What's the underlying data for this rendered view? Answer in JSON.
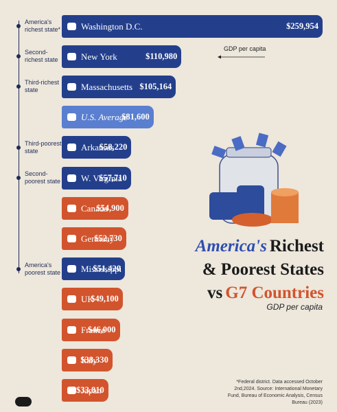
{
  "chart_data": {
    "type": "bar",
    "orientation": "horizontal",
    "title_parts": [
      "America's",
      "Richest",
      "& Poorest States",
      "vs",
      "G7 Countries"
    ],
    "subtitle": "GDP per capita",
    "annotation": "GDP per capita",
    "footnote": "*Federal district. Data accessed October 2nd,2024. Source: International Monetary Fund, Bureau of Economic Analysis, Census Bureau (2023)",
    "categories": [
      "Washington D.C.",
      "New York",
      "Massachusetts",
      "U.S. Average",
      "Arkansas",
      "W. Virginia",
      "Canada",
      "Germany",
      "Mississippi",
      "UK",
      "France",
      "Italy",
      "Japan"
    ],
    "values": [
      259954,
      110980,
      105164,
      81600,
      58220,
      57710,
      54900,
      52730,
      51420,
      49100,
      46000,
      38330,
      33810
    ],
    "value_labels": [
      "$259,954",
      "$110,980",
      "$105,164",
      "$81,600",
      "$58,220",
      "$57,710",
      "$54,900",
      "$52,730",
      "$51,420",
      "$49,100",
      "$46,000",
      "$38,330",
      "$33,810"
    ],
    "colors": [
      "#233f8c",
      "#233f8c",
      "#233f8c",
      "#5a7fd0",
      "#233f8c",
      "#233f8c",
      "#d2542d",
      "#d2542d",
      "#233f8c",
      "#d2542d",
      "#d2542d",
      "#d2542d",
      "#d2542d"
    ],
    "rank_labels": [
      "America's richest state*",
      "Second-richest state",
      "Third-richest state",
      null,
      "Third-poorest state",
      "Second-poorest state",
      null,
      null,
      "America's poorest state",
      null,
      null,
      null,
      null
    ]
  }
}
